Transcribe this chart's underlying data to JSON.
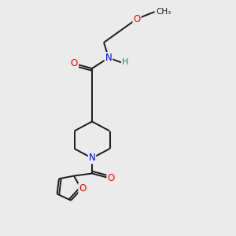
{
  "background_color": "#ebebeb",
  "bond_color": "#1a1a1a",
  "atom_colors": {
    "O": "#ff0000",
    "N": "#0000ff",
    "H": "#008b8b",
    "C": "#1a1a1a"
  },
  "font_size_atom": 8.5,
  "line_width": 1.4
}
